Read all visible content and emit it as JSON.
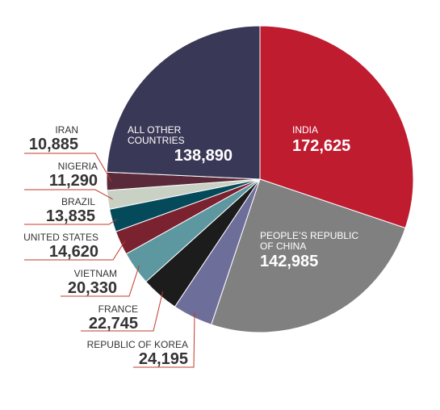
{
  "chart_data": {
    "type": "pie",
    "categories": [
      "INDIA",
      "PEOPLE’S REPUBLIC OF CHINA",
      "REPUBLIC OF KOREA",
      "FRANCE",
      "VIETNAM",
      "UNITED STATES",
      "BRAZIL",
      "NIGERIA",
      "IRAN",
      "ALL OTHER COUNTRIES"
    ],
    "values": [
      172625,
      142985,
      24195,
      22745,
      20330,
      14620,
      13835,
      11290,
      10885,
      138890
    ],
    "value_labels": [
      "172,625",
      "142,985",
      "24,195",
      "22,745",
      "20,330",
      "14,620",
      "13,835",
      "11,290",
      "10,885",
      "138,890"
    ],
    "colors": [
      "#c01c30",
      "#808080",
      "#6e6e9a",
      "#1c1c1c",
      "#5d97a0",
      "#7b2230",
      "#054a5a",
      "#c9d0c4",
      "#5a2a3a",
      "#3a3857"
    ]
  }
}
